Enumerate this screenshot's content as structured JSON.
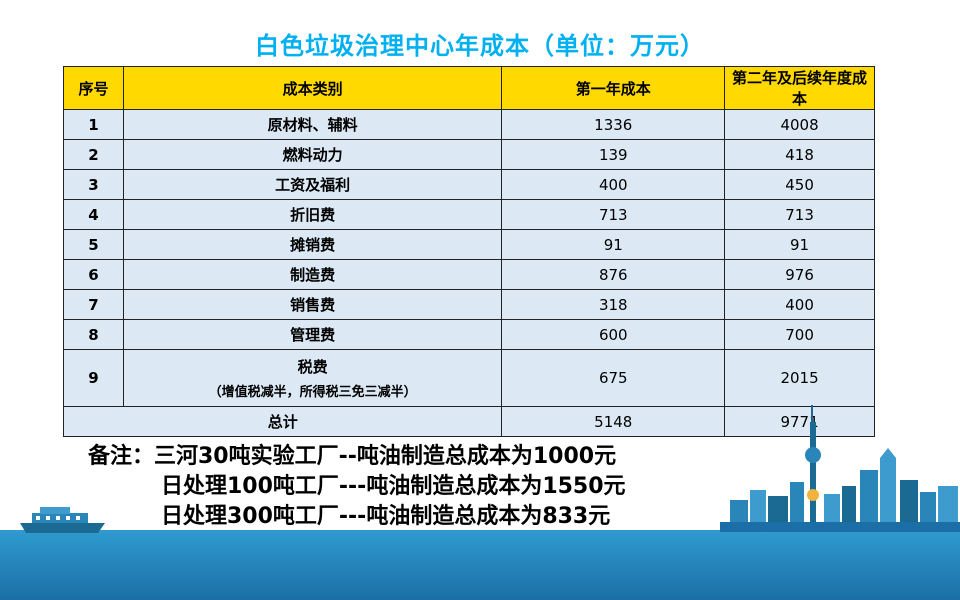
{
  "title": "白色垃圾治理中心年成本（单位：万元）",
  "table": {
    "headers": [
      "序号",
      "成本类别",
      "第一年成本",
      "第二年及后续年度成本"
    ],
    "rows": [
      {
        "no": "1",
        "category": "原材料、辅料",
        "y1": "1336",
        "y2": "4008"
      },
      {
        "no": "2",
        "category": "燃料动力",
        "y1": "139",
        "y2": "418"
      },
      {
        "no": "3",
        "category": "工资及福利",
        "y1": "400",
        "y2": "450"
      },
      {
        "no": "4",
        "category": "折旧费",
        "y1": "713",
        "y2": "713"
      },
      {
        "no": "5",
        "category": "摊销费",
        "y1": "91",
        "y2": "91"
      },
      {
        "no": "6",
        "category": "制造费",
        "y1": "876",
        "y2": "976"
      },
      {
        "no": "7",
        "category": "销售费",
        "y1": "318",
        "y2": "400"
      },
      {
        "no": "8",
        "category": "管理费",
        "y1": "600",
        "y2": "700"
      },
      {
        "no": "9",
        "category": "税费",
        "category_note": "（增值税减半，所得税三免三减半）",
        "y1": "675",
        "y2": "2015"
      }
    ],
    "total": {
      "label": "总计",
      "y1": "5148",
      "y2": "9771"
    }
  },
  "notes": {
    "line1": "备注：三河30吨实验工厂--吨油制造总成本为1000元",
    "line2": "日处理100吨工厂---吨油制造总成本为1550元",
    "line3": "日处理300吨工厂---吨油制造总成本为833元"
  },
  "colors": {
    "title": "#00b0f0",
    "header_bg": "#ffd900",
    "cell_bg": "#dce9f5",
    "sea": "#1b6fa6"
  },
  "icons": [
    "city-skyline-illustration",
    "boat-illustration"
  ]
}
